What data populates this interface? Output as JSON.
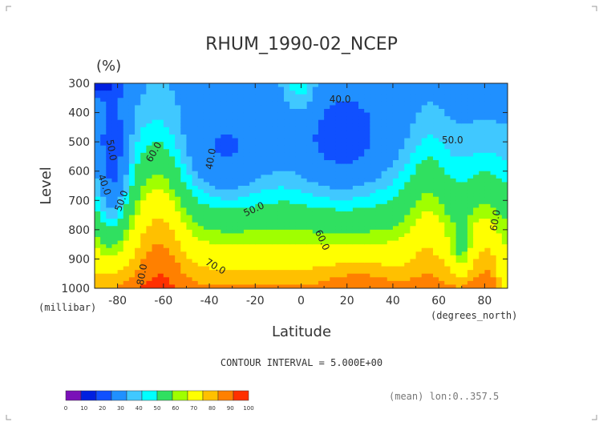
{
  "chart_data": {
    "type": "heatmap",
    "title": "RHUM_1990-02_NCEP",
    "units": "(%)",
    "xlabel": "Latitude",
    "x_unit_label": "(degrees_north)",
    "ylabel": "Level",
    "y_unit_label": "(millibar)",
    "x_ticks": [
      -80,
      -60,
      -40,
      -20,
      0,
      20,
      40,
      60,
      80
    ],
    "xlim": [
      -90,
      90
    ],
    "y_ticks": [
      300,
      400,
      500,
      600,
      700,
      800,
      900,
      1000
    ],
    "ylim": [
      1000,
      300
    ],
    "y_reversed": true,
    "contour_interval_text": "CONTOUR INTERVAL = 5.000E+00",
    "note": "(mean) lon:0..357.5",
    "colorbar": {
      "ticks": [
        0,
        10,
        20,
        30,
        40,
        50,
        60,
        70,
        80,
        90,
        100
      ],
      "colors": [
        "#7a10b8",
        "#0020e0",
        "#1050ff",
        "#2090ff",
        "#40c8ff",
        "#00ffff",
        "#30e060",
        "#a0ff00",
        "#ffff00",
        "#ffc000",
        "#ff8000",
        "#ff3000"
      ]
    },
    "contour_labels": [
      {
        "text": "40.0",
        "lat": 17,
        "lev": 365,
        "rot": 0
      },
      {
        "text": "50.0",
        "lat": 66,
        "lev": 505,
        "rot": 0
      },
      {
        "text": "50.0",
        "lat": -84,
        "lev": 530,
        "rot": 80
      },
      {
        "text": "60.0",
        "lat": -63,
        "lev": 540,
        "rot": -60
      },
      {
        "text": "40.0",
        "lat": -38,
        "lev": 560,
        "rot": -80
      },
      {
        "text": "40.0",
        "lat": -87,
        "lev": 650,
        "rot": 70
      },
      {
        "text": "50.0",
        "lat": -77,
        "lev": 705,
        "rot": -70
      },
      {
        "text": "50.0",
        "lat": -20,
        "lev": 740,
        "rot": -25
      },
      {
        "text": "60.0",
        "lat": 86,
        "lev": 770,
        "rot": -80
      },
      {
        "text": "60.0",
        "lat": 8,
        "lev": 840,
        "rot": 65
      },
      {
        "text": "70.0",
        "lat": -38,
        "lev": 935,
        "rot": 30
      },
      {
        "text": "80.0",
        "lat": -68,
        "lev": 955,
        "rot": -80
      }
    ]
  }
}
